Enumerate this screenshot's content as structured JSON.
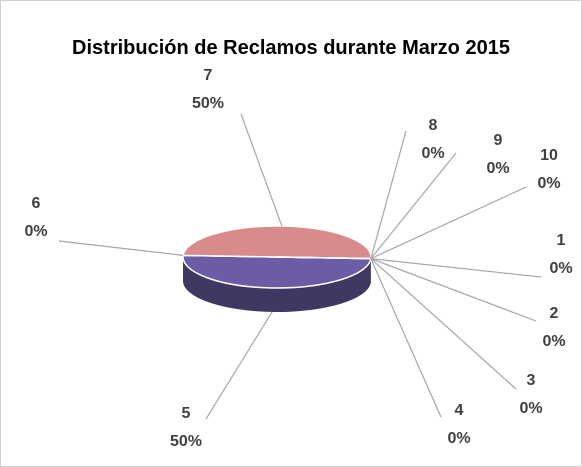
{
  "chart_data": {
    "type": "pie3d",
    "title": "Distribución de Reclamos durante Marzo 2015",
    "categories": [
      "1",
      "2",
      "3",
      "4",
      "5",
      "6",
      "7",
      "8",
      "9",
      "10"
    ],
    "values": [
      0,
      0,
      0,
      0,
      50,
      0,
      50,
      0,
      0,
      0
    ],
    "value_labels": [
      "0%",
      "0%",
      "0%",
      "0%",
      "50%",
      "0%",
      "50%",
      "0%",
      "0%",
      "0%"
    ],
    "colors": [
      "#4f81bd",
      "#c0504d",
      "#9bbb59",
      "#8064a2",
      "#6b5ca5",
      "#f79646",
      "#d98a8a",
      "#4bacc6",
      "#2c4d75",
      "#772c2a"
    ]
  }
}
